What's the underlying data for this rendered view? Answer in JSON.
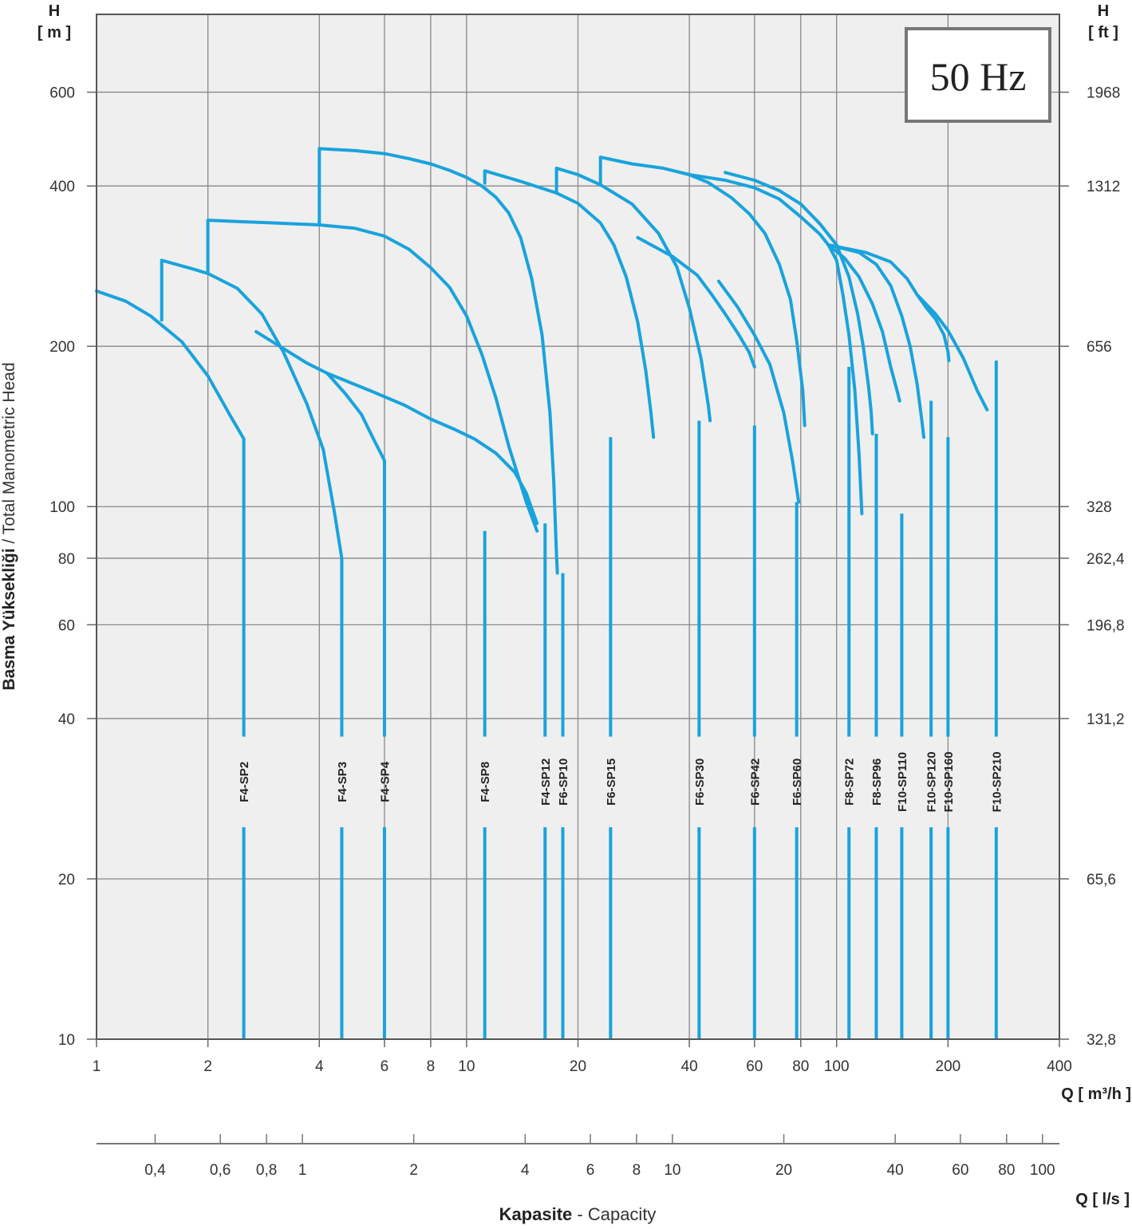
{
  "chart_data": {
    "type": "line",
    "title": "",
    "badge": "50 Hz",
    "scale": "log-log",
    "grid": true,
    "colors": {
      "curve": "#19a3dc",
      "plot_bg": "#efefef",
      "grid": "#888888",
      "frame": "#555555"
    },
    "y_left": {
      "label_letter": "H",
      "unit": "[ m ]",
      "title_bold": "Basma  Yüksekliği",
      "title_rest": " / Total Manometric Head",
      "range": [
        10,
        840
      ],
      "ticks": [
        {
          "v": 10,
          "label": "10"
        },
        {
          "v": 20,
          "label": "20"
        },
        {
          "v": 40,
          "label": "40"
        },
        {
          "v": 60,
          "label": "60"
        },
        {
          "v": 80,
          "label": "80"
        },
        {
          "v": 100,
          "label": "100"
        },
        {
          "v": 200,
          "label": "200"
        },
        {
          "v": 400,
          "label": "400"
        },
        {
          "v": 600,
          "label": "600"
        }
      ]
    },
    "y_right": {
      "label_letter": "H",
      "unit": "[ ft ]",
      "ticks": [
        {
          "v": 10,
          "label": "32,8"
        },
        {
          "v": 20,
          "label": "65,6"
        },
        {
          "v": 40,
          "label": "131,2"
        },
        {
          "v": 60,
          "label": "196,8"
        },
        {
          "v": 80,
          "label": "262,4"
        },
        {
          "v": 100,
          "label": "328"
        },
        {
          "v": 200,
          "label": "656"
        },
        {
          "v": 400,
          "label": "1312"
        },
        {
          "v": 600,
          "label": "1968"
        }
      ]
    },
    "x_m3h": {
      "label": "Q [ m³/h ]",
      "range": [
        1,
        400
      ],
      "ticks": [
        {
          "v": 1,
          "label": "1"
        },
        {
          "v": 2,
          "label": "2"
        },
        {
          "v": 4,
          "label": "4"
        },
        {
          "v": 6,
          "label": "6"
        },
        {
          "v": 8,
          "label": "8"
        },
        {
          "v": 10,
          "label": "10"
        },
        {
          "v": 20,
          "label": "20"
        },
        {
          "v": 40,
          "label": "40"
        },
        {
          "v": 60,
          "label": "60"
        },
        {
          "v": 80,
          "label": "80"
        },
        {
          "v": 100,
          "label": "100"
        },
        {
          "v": 200,
          "label": "200"
        },
        {
          "v": 400,
          "label": "400"
        }
      ]
    },
    "x_ls": {
      "label": "Q [ l/s ]",
      "ticks": [
        {
          "v": 0.4,
          "label": "0,4"
        },
        {
          "v": 0.6,
          "label": "0,6"
        },
        {
          "v": 0.8,
          "label": "0,8"
        },
        {
          "v": 1,
          "label": "1"
        },
        {
          "v": 2,
          "label": "2"
        },
        {
          "v": 4,
          "label": "4"
        },
        {
          "v": 6,
          "label": "6"
        },
        {
          "v": 8,
          "label": "8"
        },
        {
          "v": 10,
          "label": "10"
        },
        {
          "v": 20,
          "label": "20"
        },
        {
          "v": 40,
          "label": "40"
        },
        {
          "v": 60,
          "label": "60"
        },
        {
          "v": 80,
          "label": "80"
        },
        {
          "v": 100,
          "label": "100"
        }
      ]
    },
    "x_title_bold": "Kapasite",
    "x_title_rest": " - Capacity",
    "series": [
      {
        "name": "F4-SP2",
        "points": [
          [
            1,
            254
          ],
          [
            1.2,
            243
          ],
          [
            1.4,
            228
          ],
          [
            1.7,
            204
          ],
          [
            2,
            176
          ],
          [
            2.3,
            148
          ],
          [
            2.5,
            134
          ]
        ],
        "drop_to": 10
      },
      {
        "name": "F4-SP3",
        "points": [
          [
            1.5,
            224
          ],
          [
            1.5,
            290
          ],
          [
            1.8,
            280
          ],
          [
            2,
            274
          ],
          [
            2.4,
            257
          ],
          [
            2.8,
            230
          ],
          [
            3.2,
            195
          ],
          [
            3.7,
            156
          ],
          [
            4.1,
            128
          ],
          [
            4.4,
            97
          ],
          [
            4.6,
            80
          ]
        ],
        "drop_to": 10
      },
      {
        "name": "F4-SP4",
        "points": [
          [
            2.7,
            213
          ],
          [
            3.2,
            198
          ],
          [
            3.7,
            186
          ],
          [
            4.2,
            178
          ],
          [
            4.7,
            163
          ],
          [
            5.2,
            149
          ],
          [
            5.6,
            134
          ],
          [
            6,
            122
          ]
        ],
        "drop_to": 10
      },
      {
        "name": "F4-SP8",
        "points": [
          [
            2,
            274
          ],
          [
            2,
            345
          ],
          [
            2.4,
            343
          ],
          [
            3,
            341
          ],
          [
            4,
            338
          ],
          [
            5,
            333
          ],
          [
            6,
            322
          ],
          [
            7,
            304
          ],
          [
            8,
            281
          ],
          [
            9,
            258
          ],
          [
            10,
            228
          ],
          [
            11,
            193
          ],
          [
            12,
            160
          ],
          [
            13,
            130
          ],
          [
            14.5,
            102
          ],
          [
            15.5,
            90
          ]
        ],
        "drop_to": 10
      },
      {
        "name": "F4-SP12",
        "points": [
          [
            4.2,
            178
          ],
          [
            5.5,
            165
          ],
          [
            6.8,
            155
          ],
          [
            8,
            146
          ],
          [
            9.2,
            140
          ],
          [
            10.5,
            134
          ],
          [
            12,
            126
          ],
          [
            13.5,
            116
          ],
          [
            14.5,
            106
          ],
          [
            15.5,
            93
          ]
        ],
        "drop_to": 10
      },
      {
        "name": "F6-SP10",
        "points": [
          [
            4,
            338
          ],
          [
            4,
            470
          ],
          [
            5,
            466
          ],
          [
            6,
            460
          ],
          [
            7,
            450
          ],
          [
            8,
            440
          ],
          [
            9,
            428
          ],
          [
            10,
            415
          ],
          [
            11,
            400
          ],
          [
            12,
            381
          ],
          [
            13,
            356
          ],
          [
            14,
            320
          ],
          [
            15,
            268
          ],
          [
            16,
            210
          ],
          [
            16.8,
            150
          ],
          [
            17.2,
            112
          ],
          [
            17.5,
            81
          ],
          [
            17.6,
            75
          ]
        ],
        "drop_to": 10
      },
      {
        "name": "F6-SP15",
        "points": [
          [
            11.2,
            405
          ],
          [
            11.2,
            427
          ],
          [
            14,
            408
          ],
          [
            17.5,
            388
          ],
          [
            20,
            371
          ],
          [
            23,
            341
          ],
          [
            25,
            310
          ],
          [
            27,
            270
          ],
          [
            29,
            222
          ],
          [
            30.5,
            180
          ],
          [
            31.5,
            150
          ],
          [
            32,
            135
          ]
        ],
        "drop_to": 10
      },
      {
        "name": "F6-SP30",
        "points": [
          [
            17.5,
            388
          ],
          [
            17.5,
            432
          ],
          [
            20,
            420
          ],
          [
            23,
            402
          ],
          [
            28,
            370
          ],
          [
            33,
            326
          ],
          [
            37,
            282
          ],
          [
            40,
            236
          ],
          [
            43,
            190
          ],
          [
            45,
            155
          ],
          [
            45.5,
            145
          ]
        ],
        "drop_to": 10
      },
      {
        "name": "F6-SP42",
        "points": [
          [
            23,
            402
          ],
          [
            23,
            453
          ],
          [
            28,
            440
          ],
          [
            34,
            432
          ],
          [
            40,
            420
          ],
          [
            45,
            406
          ],
          [
            52,
            380
          ],
          [
            58,
            355
          ],
          [
            64,
            326
          ],
          [
            70,
            285
          ],
          [
            75,
            245
          ],
          [
            78,
            205
          ],
          [
            81,
            165
          ],
          [
            82,
            142
          ]
        ],
        "drop_to": 10
      },
      {
        "name": "F6-SP60",
        "points": [
          [
            48,
            265
          ],
          [
            54,
            237
          ],
          [
            60,
            210
          ],
          [
            66,
            185
          ],
          [
            72,
            150
          ],
          [
            76,
            122
          ],
          [
            78,
            108
          ],
          [
            79,
            102
          ]
        ],
        "drop_to": 10
      },
      {
        "name": "F8-SP72",
        "points": [
          [
            29,
            320
          ],
          [
            36,
            295
          ],
          [
            42,
            272
          ],
          [
            46,
            250
          ],
          [
            50,
            230
          ],
          [
            54,
            212
          ],
          [
            58,
            195
          ],
          [
            60,
            183
          ]
        ],
        "drop_to": 10
      },
      {
        "name": "F8-SP96",
        "points": [
          [
            50,
            424
          ],
          [
            60,
            410
          ],
          [
            70,
            392
          ],
          [
            80,
            370
          ],
          [
            90,
            340
          ],
          [
            100,
            310
          ],
          [
            108,
            270
          ],
          [
            114,
            230
          ],
          [
            118,
            200
          ],
          [
            122,
            168
          ],
          [
            124,
            150
          ],
          [
            125,
            137
          ]
        ],
        "drop_to": 10
      },
      {
        "name": "F10-SP110",
        "points": [
          [
            40,
            420
          ],
          [
            50,
            410
          ],
          [
            60,
            397
          ],
          [
            70,
            378
          ],
          [
            80,
            350
          ],
          [
            90,
            325
          ],
          [
            95,
            310
          ],
          [
            100,
            290
          ],
          [
            104,
            250
          ],
          [
            108,
            210
          ],
          [
            112,
            165
          ],
          [
            115,
            125
          ],
          [
            117,
            97
          ]
        ],
        "drop_to": 10
      },
      {
        "name": "F10-SP120",
        "points": [
          [
            95,
            310
          ],
          [
            105,
            293
          ],
          [
            115,
            270
          ],
          [
            125,
            240
          ],
          [
            133,
            213
          ],
          [
            140,
            183
          ],
          [
            146,
            164
          ],
          [
            148,
            158
          ]
        ],
        "drop_to": 10
      },
      {
        "name": "F10-SP160",
        "points": [
          [
            95,
            310
          ],
          [
            115,
            300
          ],
          [
            128,
            285
          ],
          [
            140,
            260
          ],
          [
            150,
            228
          ],
          [
            158,
            200
          ],
          [
            165,
            170
          ],
          [
            170,
            145
          ],
          [
            172,
            135
          ]
        ],
        "drop_to": 10
      },
      {
        "name": "F10-SP210",
        "points": [
          [
            95,
            310
          ],
          [
            120,
            300
          ],
          [
            140,
            288
          ],
          [
            155,
            268
          ],
          [
            165,
            250
          ],
          [
            175,
            236
          ],
          [
            185,
            225
          ],
          [
            195,
            210
          ],
          [
            200,
            195
          ],
          [
            201,
            188
          ]
        ],
        "drop_to": 10
      },
      {
        "name": "F10-SP210-curve",
        "label_only": false,
        "points": [
          [
            165,
            250
          ],
          [
            185,
            230
          ],
          [
            200,
            214
          ],
          [
            220,
            190
          ],
          [
            240,
            165
          ],
          [
            255,
            152
          ]
        ],
        "drop_to": 10
      }
    ],
    "labels": [
      {
        "text": "F4-SP2",
        "q": 2.5
      },
      {
        "text": "F4-SP3",
        "q": 4.6
      },
      {
        "text": "F4-SP4",
        "q": 6
      },
      {
        "text": "F4-SP8",
        "q": 11.2
      },
      {
        "text": "F4-SP12",
        "q": 16.3
      },
      {
        "text": "F6-SP10",
        "q": 18.2
      },
      {
        "text": "F6-SP15",
        "q": 24.5
      },
      {
        "text": "F6-SP30",
        "q": 42.5
      },
      {
        "text": "F6-SP42",
        "q": 60
      },
      {
        "text": "F6-SP60",
        "q": 78
      },
      {
        "text": "F8-SP72",
        "q": 108
      },
      {
        "text": "F8-SP96",
        "q": 128
      },
      {
        "text": "F10-SP110",
        "q": 150
      },
      {
        "text": "F10-SP120",
        "q": 180
      },
      {
        "text": "F10-SP160",
        "q": 200
      },
      {
        "text": "F10-SP210",
        "q": 270
      }
    ]
  }
}
